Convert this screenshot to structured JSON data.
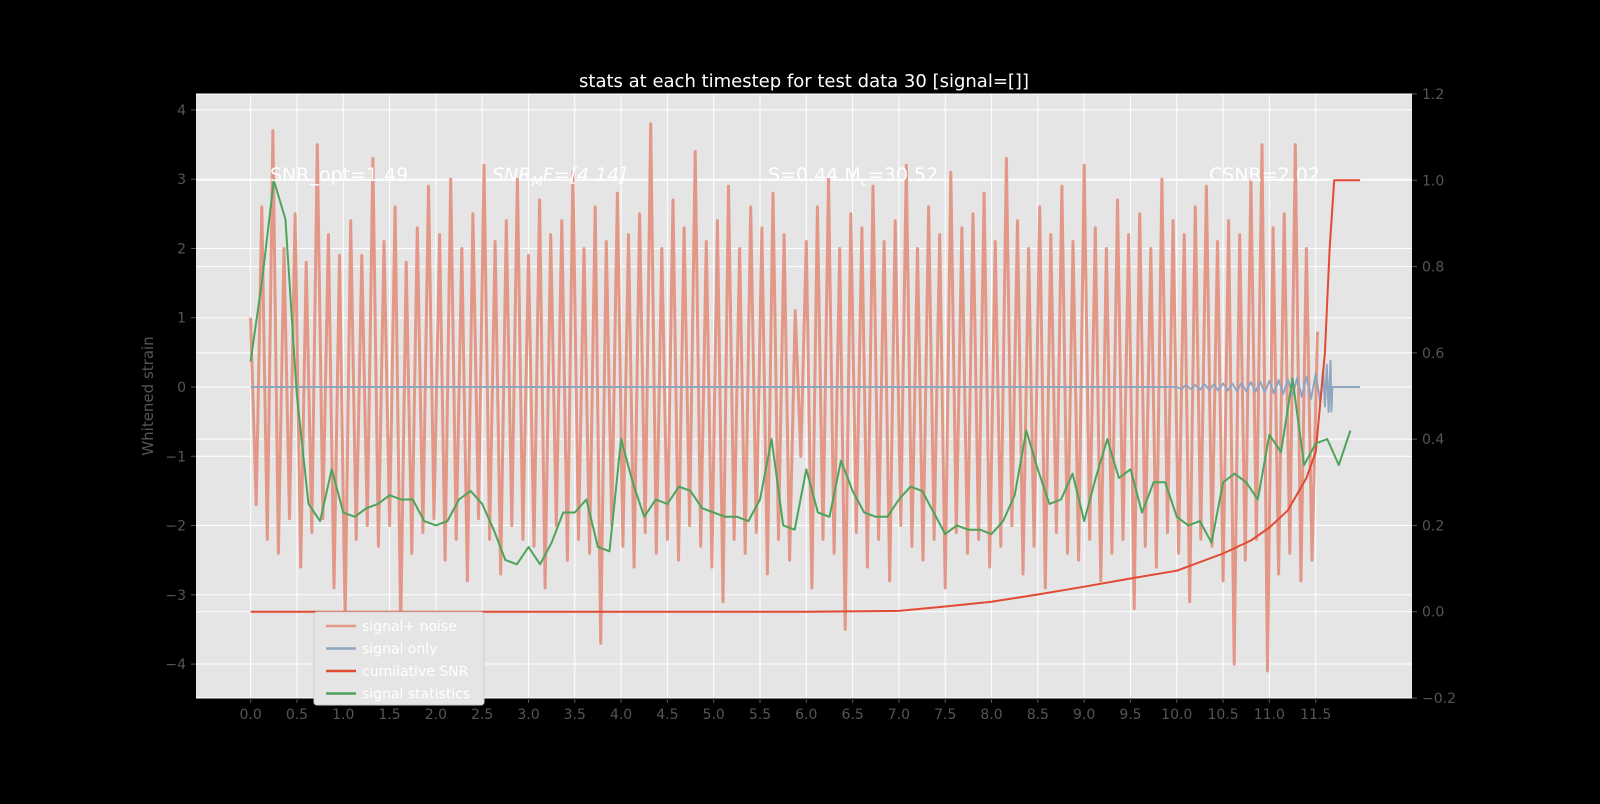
{
  "chart_data": {
    "type": "line",
    "title": "stats at each timestep for test data 30 [signal=[]]",
    "ylabel": "Whitened strain",
    "xlabel": "",
    "xlim": [
      -0.59,
      12.54
    ],
    "ylim": [
      -4.49,
      4.23
    ],
    "ylim_right": [
      -0.2,
      1.2
    ],
    "grid": true,
    "legend_placement": "lower-left",
    "x_ticks": [
      "0.0",
      "0.5",
      "1.0",
      "1.5",
      "2.0",
      "2.5",
      "3.0",
      "3.5",
      "4.0",
      "4.5",
      "5.0",
      "5.5",
      "6.0",
      "6.5",
      "7.0",
      "7.5",
      "8.0",
      "8.5",
      "9.0",
      "9.5",
      "10.0",
      "10.5",
      "11.0",
      "11.5"
    ],
    "y_ticks_left": [
      "4",
      "3",
      "2",
      "1",
      "0",
      "−1",
      "−2",
      "−3",
      "−4"
    ],
    "y_ticks_right": [
      "1.2",
      "1.0",
      "0.8",
      "0.6",
      "0.4",
      "0.2",
      "0.0",
      "−0.2"
    ],
    "annotations": [
      {
        "text": "SNR_opt=1.49"
      },
      {
        "main": "SNR",
        "sub": "M",
        "rest": "F=[4.14]"
      },
      {
        "main": "S=0.44  M",
        "sub": "c",
        "rest": "=30.52"
      },
      {
        "text": "CSNR=2.02"
      }
    ],
    "series": [
      {
        "name": "signal+ noise",
        "axis": "left",
        "color": "#e39787",
        "x_start": 0,
        "x_step": 0.06,
        "values": [
          1.0,
          -1.7,
          2.6,
          -2.2,
          3.7,
          -2.4,
          2.0,
          -1.9,
          2.5,
          -2.6,
          1.8,
          -2.1,
          3.5,
          -1.9,
          2.2,
          -2.9,
          1.9,
          -3.4,
          2.4,
          -2.2,
          1.9,
          -2.0,
          3.3,
          -2.3,
          2.1,
          -2.0,
          2.6,
          -3.5,
          1.8,
          -2.4,
          2.3,
          -2.1,
          2.9,
          -1.9,
          2.2,
          -2.5,
          3.0,
          -2.2,
          2.0,
          -2.8,
          2.5,
          -1.9,
          3.2,
          -2.2,
          2.1,
          -2.7,
          2.4,
          -2.0,
          3.0,
          -2.2,
          1.9,
          -2.3,
          2.7,
          -2.9,
          2.2,
          -2.0,
          2.4,
          -2.5,
          3.1,
          -2.2,
          2.0,
          -2.4,
          2.6,
          -3.7,
          2.1,
          -2.0,
          2.8,
          -2.3,
          2.2,
          -2.6,
          2.5,
          -2.1,
          3.8,
          -2.4,
          2.0,
          -2.2,
          2.7,
          -2.5,
          2.3,
          -2.0,
          3.4,
          -2.3,
          2.1,
          -2.6,
          2.4,
          -3.1,
          2.9,
          -2.2,
          2.0,
          -2.4,
          2.6,
          -2.1,
          2.3,
          -2.7,
          2.8,
          -2.2,
          2.2,
          -2.5,
          1.1,
          -1.0,
          2.1,
          -2.9,
          2.6,
          -2.2,
          3.0,
          -2.4,
          2.0,
          -3.5,
          2.5,
          -2.1,
          2.3,
          -2.6,
          2.9,
          -2.2,
          2.1,
          -2.8,
          2.4,
          -2.0,
          3.2,
          -2.3,
          2.0,
          -2.5,
          2.6,
          -2.2,
          2.2,
          -2.9,
          3.1,
          -2.1,
          2.3,
          -2.4,
          2.5,
          -2.2,
          2.8,
          -2.6,
          2.1,
          -2.3,
          3.3,
          -2.0,
          2.4,
          -2.7,
          2.0,
          -2.3,
          2.6,
          -2.9,
          2.2,
          -2.1,
          2.9,
          -2.4,
          2.1,
          -2.5,
          3.2,
          -2.2,
          2.3,
          -2.8,
          2.0,
          -2.4,
          2.7,
          -2.2,
          2.2,
          -3.2,
          2.5,
          -2.3,
          2.0,
          -2.6,
          3.0,
          -2.1,
          2.4,
          -2.4,
          2.2,
          -3.1,
          2.6,
          -2.2,
          2.9,
          -2.3,
          2.1,
          -2.8,
          2.4,
          -4.0,
          2.2,
          -2.5,
          3.0,
          -2.2,
          3.5,
          -4.1,
          2.3,
          -2.7,
          2.5,
          -2.4,
          3.5,
          -2.8,
          2.0,
          -2.5,
          0.8
        ]
      },
      {
        "name": "signal only",
        "axis": "left",
        "color": "#8fa6c0",
        "x": [
          0,
          10.0,
          10.05,
          10.1,
          10.15,
          10.2,
          10.25,
          10.3,
          10.35,
          10.4,
          10.45,
          10.5,
          10.55,
          10.6,
          10.65,
          10.7,
          10.75,
          10.8,
          10.85,
          10.9,
          10.95,
          11.0,
          11.05,
          11.1,
          11.15,
          11.2,
          11.25,
          11.3,
          11.35,
          11.4,
          11.45,
          11.5,
          11.55,
          11.58,
          11.6,
          11.62,
          11.64,
          11.66,
          11.67,
          11.68,
          11.98
        ],
        "values": [
          0,
          0,
          -0.03,
          0.03,
          -0.03,
          0.03,
          -0.04,
          0.04,
          -0.04,
          0.04,
          -0.05,
          0.05,
          -0.05,
          0.05,
          -0.06,
          0.06,
          -0.06,
          0.07,
          -0.07,
          0.08,
          -0.08,
          0.09,
          -0.09,
          0.1,
          -0.1,
          0.11,
          -0.12,
          0.13,
          -0.14,
          0.15,
          -0.17,
          0.19,
          -0.22,
          0.25,
          -0.28,
          0.32,
          -0.36,
          0.38,
          -0.35,
          0,
          0
        ]
      },
      {
        "name": "cumilative SNR",
        "axis": "right",
        "color": "#e24a33",
        "x": [
          0,
          6.0,
          7.0,
          7.5,
          8.0,
          8.5,
          9.0,
          9.5,
          10.0,
          10.5,
          10.8,
          11.0,
          11.2,
          11.4,
          11.5,
          11.6,
          11.65,
          11.7,
          11.98
        ],
        "values": [
          0,
          0,
          0.002,
          0.012,
          0.023,
          0.04,
          0.058,
          0.077,
          0.095,
          0.135,
          0.165,
          0.195,
          0.235,
          0.31,
          0.37,
          0.6,
          0.84,
          1.0,
          1.0
        ]
      },
      {
        "name": "signal statistics",
        "axis": "right",
        "color": "#4ea35a",
        "x_start": 0,
        "x_step": 0.125,
        "values": [
          0.58,
          0.77,
          1.0,
          0.91,
          0.5,
          0.25,
          0.21,
          0.33,
          0.23,
          0.22,
          0.24,
          0.25,
          0.27,
          0.26,
          0.26,
          0.21,
          0.2,
          0.21,
          0.26,
          0.28,
          0.25,
          0.19,
          0.12,
          0.11,
          0.15,
          0.11,
          0.16,
          0.23,
          0.23,
          0.26,
          0.15,
          0.14,
          0.4,
          0.3,
          0.22,
          0.26,
          0.25,
          0.29,
          0.28,
          0.24,
          0.23,
          0.22,
          0.22,
          0.21,
          0.26,
          0.4,
          0.2,
          0.19,
          0.33,
          0.23,
          0.22,
          0.35,
          0.28,
          0.23,
          0.22,
          0.22,
          0.26,
          0.29,
          0.28,
          0.23,
          0.18,
          0.2,
          0.19,
          0.19,
          0.18,
          0.21,
          0.27,
          0.42,
          0.33,
          0.25,
          0.26,
          0.32,
          0.21,
          0.31,
          0.4,
          0.31,
          0.33,
          0.23,
          0.3,
          0.3,
          0.22,
          0.2,
          0.21,
          0.16,
          0.3,
          0.32,
          0.3,
          0.26,
          0.41,
          0.37,
          0.54,
          0.34,
          0.39,
          0.4,
          0.34,
          0.42
        ]
      }
    ]
  }
}
